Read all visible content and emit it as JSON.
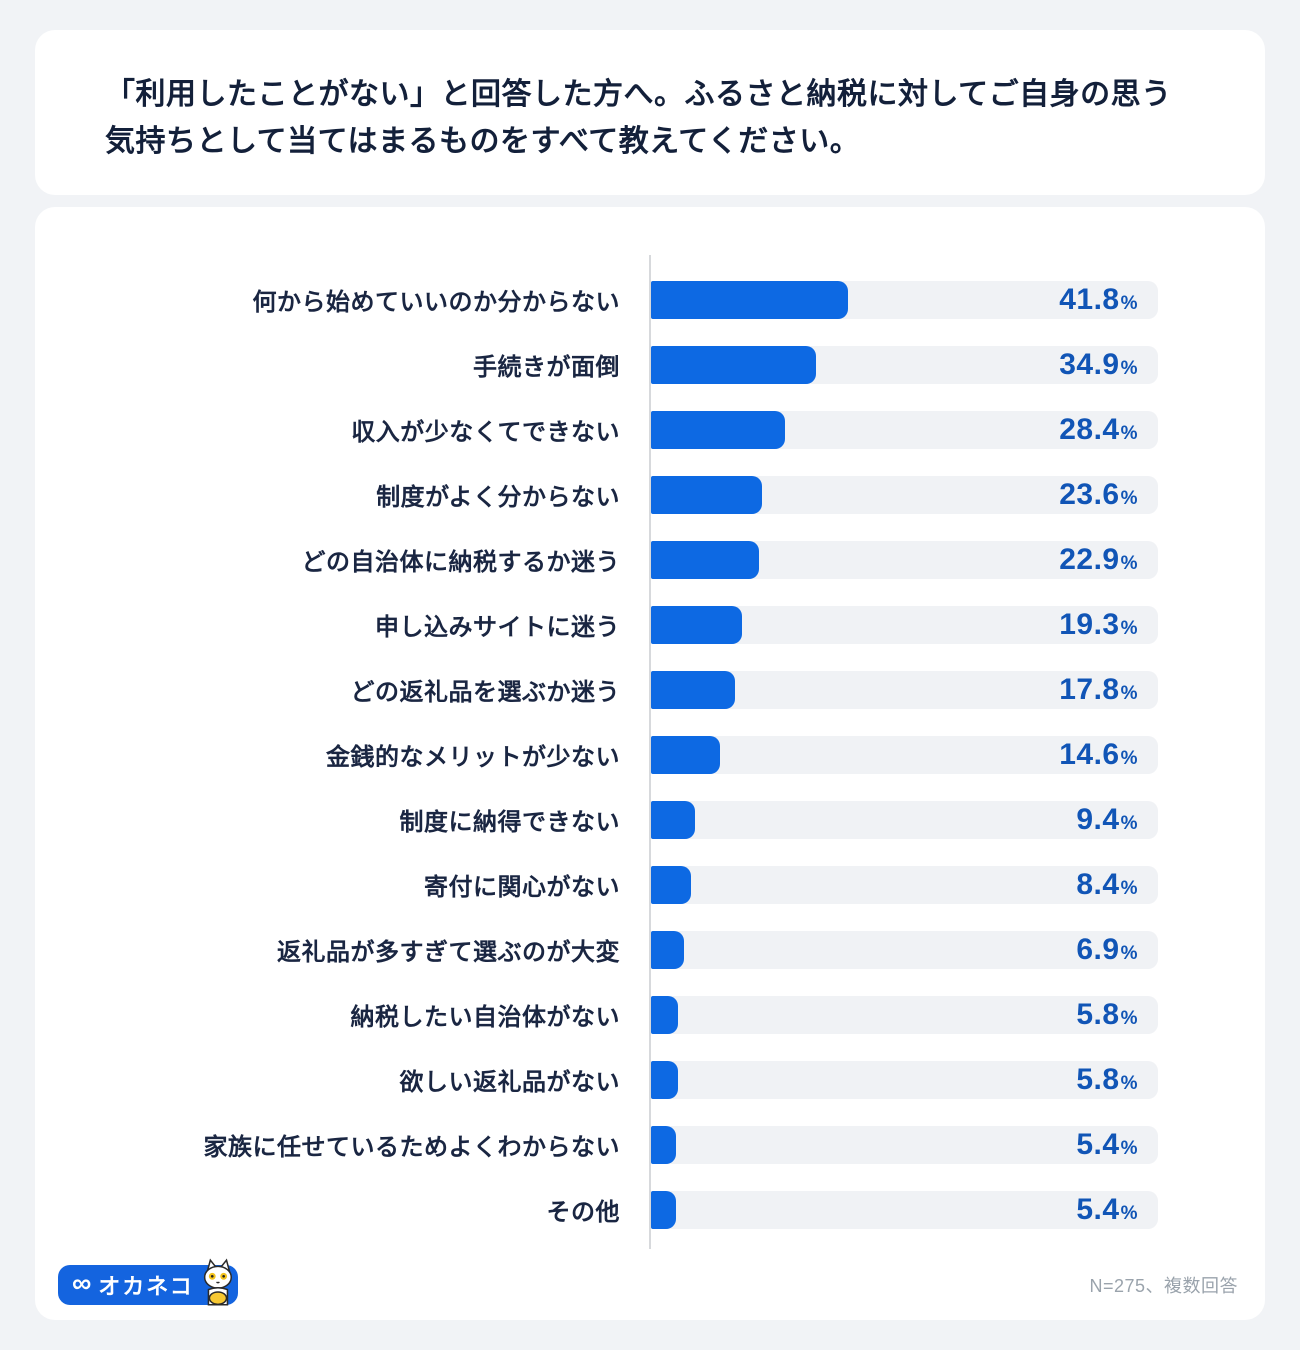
{
  "title_card": {
    "title": "「利用したことがない」と回答した方へ。ふるさと納税に対してご自身の思う気持ちとして当てはまるものをすべて教えてください。"
  },
  "chart_data": {
    "type": "bar",
    "orientation": "horizontal",
    "categories": [
      "何から始めていいのか分からない",
      "手続きが面倒",
      "収入が少なくてできない",
      "制度がよく分からない",
      "どの自治体に納税するか迷う",
      "申し込みサイトに迷う",
      "どの返礼品を選ぶか迷う",
      "金銭的なメリットが少ない",
      "制度に納得できない",
      "寄付に関心がない",
      "返礼品が多すぎて選ぶのが大変",
      "納税したい自治体がない",
      "欲しい返礼品がない",
      "家族に任せているためよくわからない",
      "その他"
    ],
    "values": [
      41.8,
      34.9,
      28.4,
      23.6,
      22.9,
      19.3,
      17.8,
      14.6,
      9.4,
      8.4,
      6.9,
      5.8,
      5.8,
      5.4,
      5.4
    ],
    "unit": "%",
    "xlim": [
      0,
      107.5
    ],
    "grid": false,
    "legend": false,
    "colors": {
      "bar_fill": "#0d69e3",
      "bar_track": "#f0f2f5",
      "value_text": "#1155b6",
      "axis_line": "#d7d9dc",
      "label_text": "#1a2642"
    }
  },
  "footer": {
    "logo_infinity_glyph": "∞",
    "logo_text": "オカネコ",
    "logo_bg_color": "#1464df",
    "note": "N=275、複数回答"
  }
}
